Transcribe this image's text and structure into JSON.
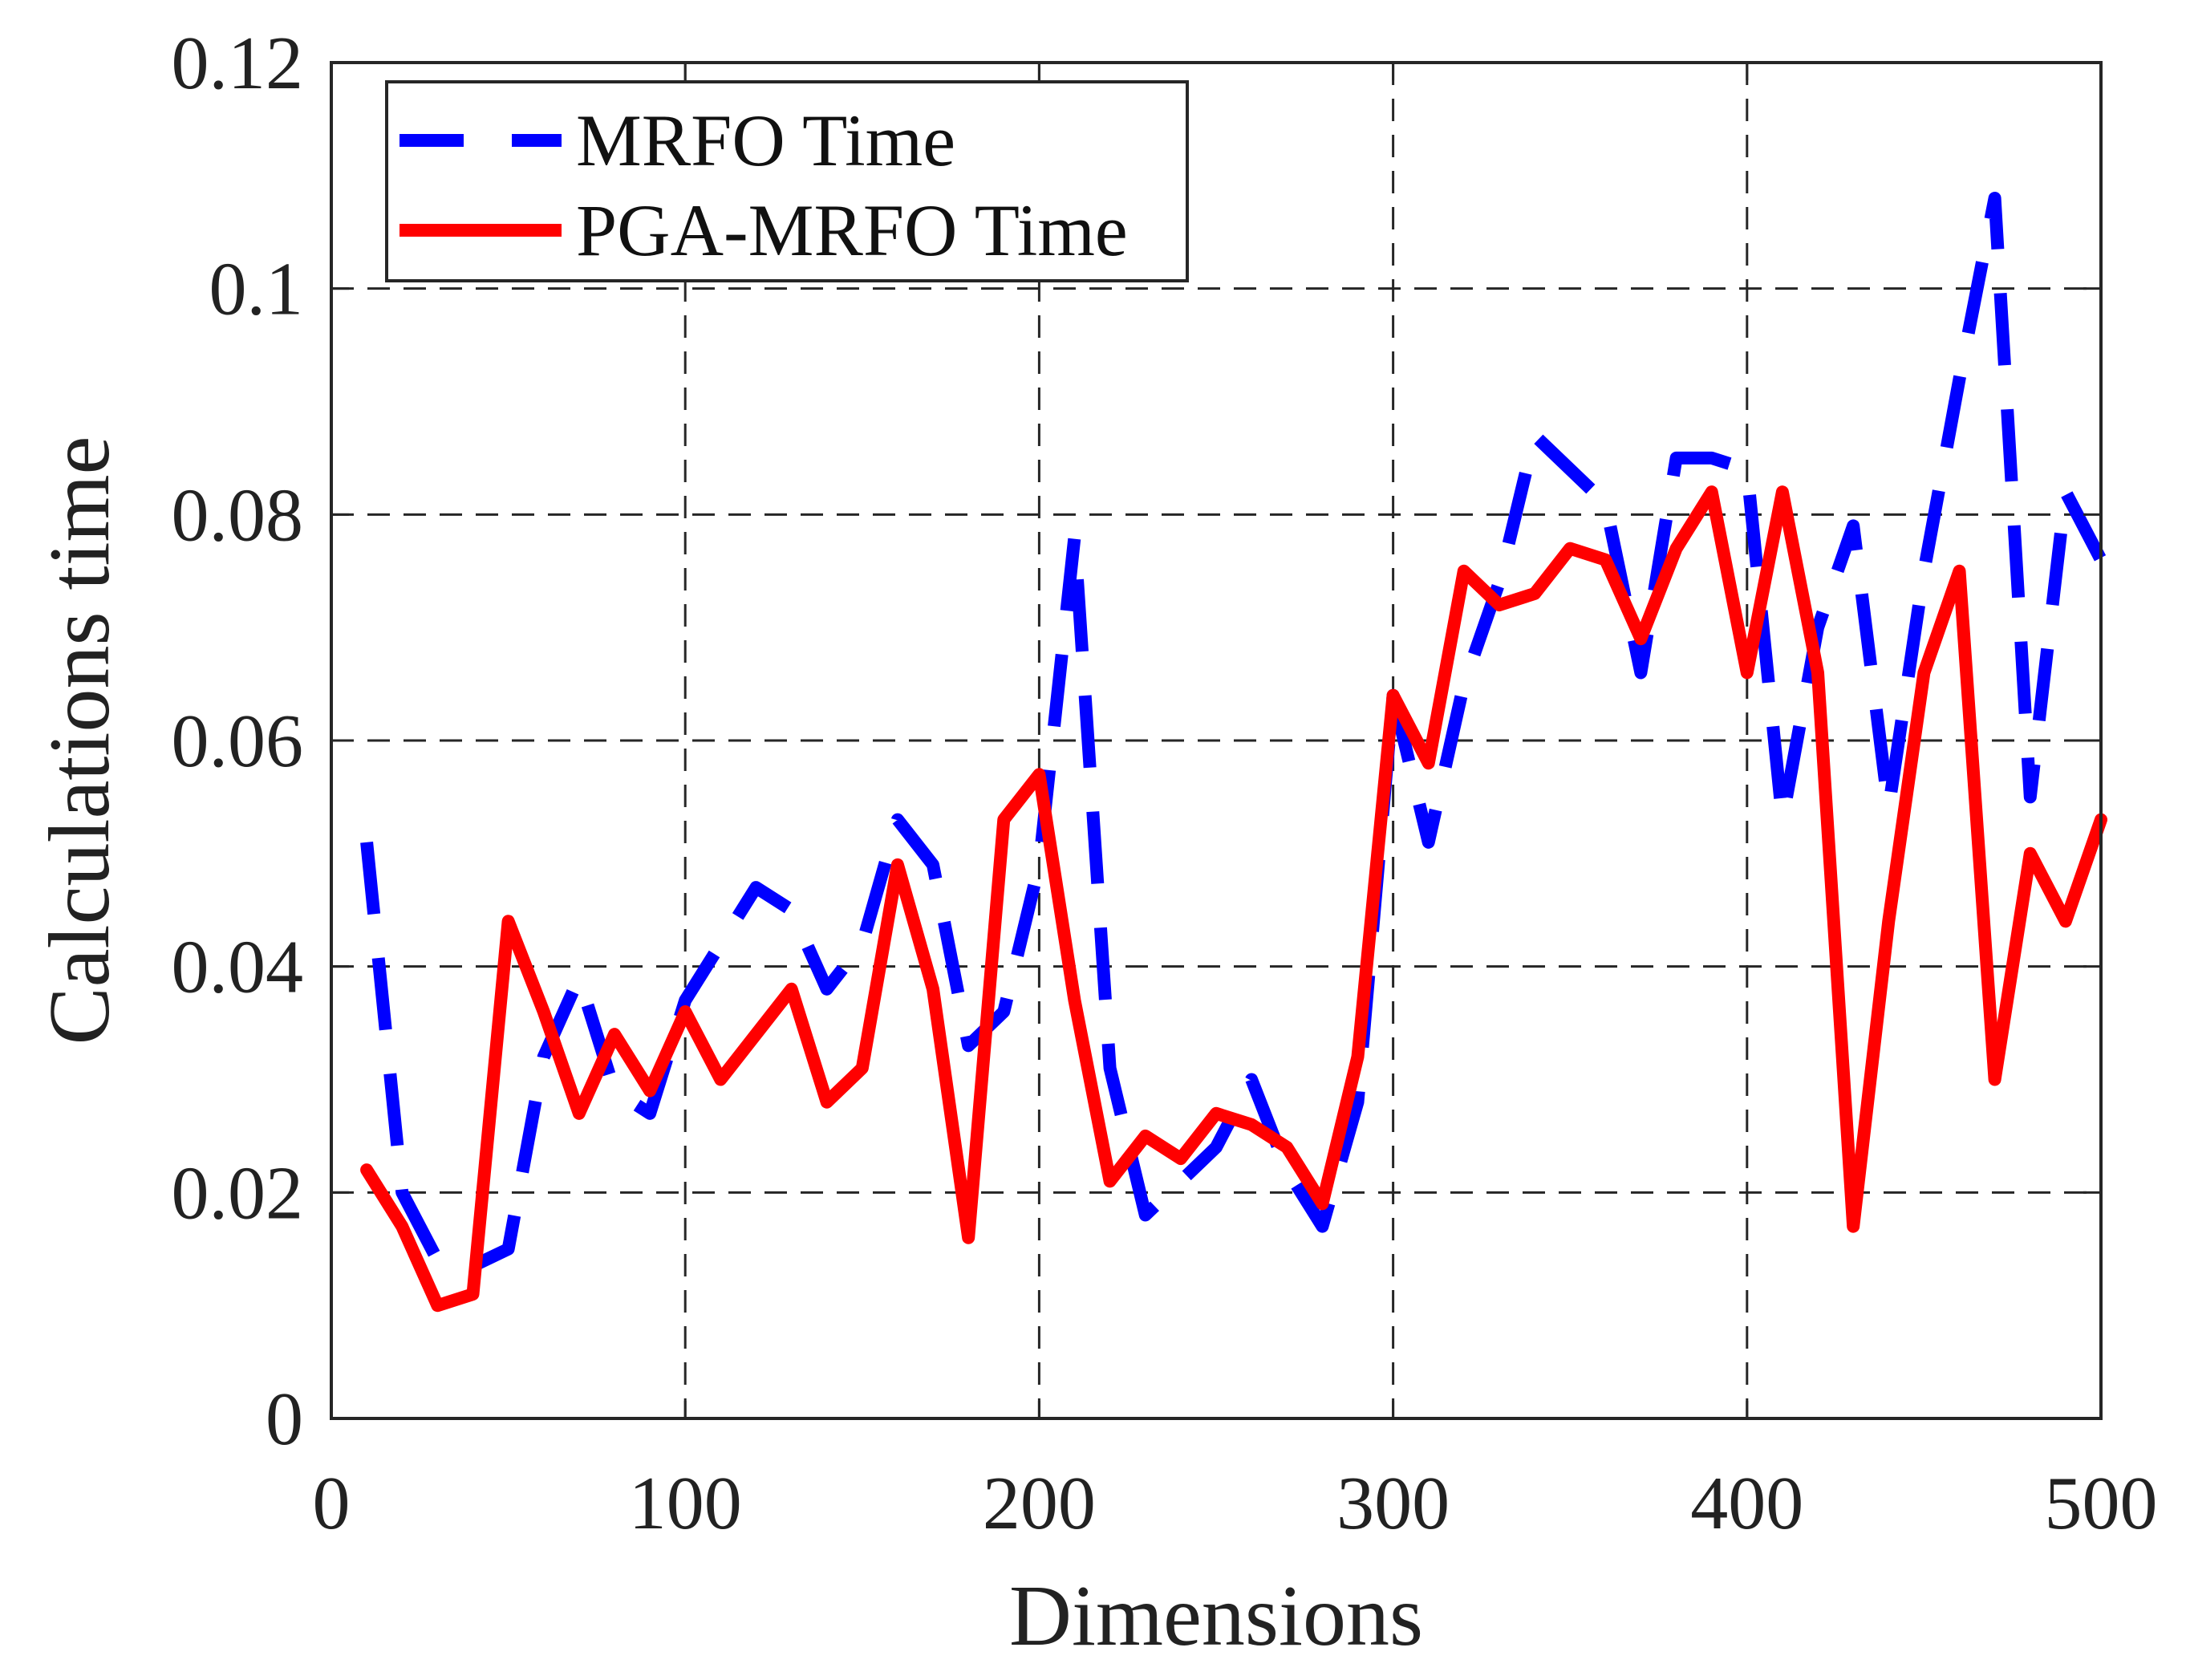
{
  "chart_data": {
    "type": "line",
    "title": "",
    "xlabel": "Dimensions",
    "ylabel": "Calculations time",
    "xlim": [
      0,
      500
    ],
    "ylim": [
      0,
      0.12
    ],
    "grid": true,
    "legend_position": "top-left",
    "x_ticks": [
      0,
      100,
      200,
      300,
      400,
      500
    ],
    "x_tick_labels": [
      "0",
      "100",
      "200",
      "300",
      "400",
      "500"
    ],
    "y_ticks": [
      0,
      0.02,
      0.04,
      0.06,
      0.08,
      0.1,
      0.12
    ],
    "y_tick_labels": [
      "0",
      "0.02",
      "0.04",
      "0.06",
      "0.08",
      "0.1",
      "0.12"
    ],
    "x": [
      10,
      20,
      30,
      40,
      50,
      60,
      70,
      80,
      90,
      100,
      110,
      120,
      130,
      140,
      150,
      160,
      170,
      180,
      190,
      200,
      210,
      220,
      230,
      240,
      250,
      260,
      270,
      280,
      290,
      300,
      310,
      320,
      330,
      340,
      350,
      360,
      370,
      380,
      390,
      400,
      410,
      420,
      430,
      440,
      450,
      460,
      470,
      480,
      490,
      500
    ],
    "series": [
      {
        "name": "MRFO Time",
        "color": "#0000ff",
        "style": "dashed",
        "values": [
          0.051,
          0.02,
          0.014,
          0.0135,
          0.015,
          0.032,
          0.039,
          0.029,
          0.027,
          0.037,
          0.042,
          0.047,
          0.045,
          0.038,
          0.042,
          0.053,
          0.049,
          0.033,
          0.036,
          0.049,
          0.078,
          0.031,
          0.018,
          0.021,
          0.024,
          0.03,
          0.022,
          0.017,
          0.028,
          0.064,
          0.051,
          0.065,
          0.074,
          0.087,
          0.084,
          0.081,
          0.066,
          0.085,
          0.085,
          0.084,
          0.053,
          0.07,
          0.079,
          0.054,
          0.075,
          0.092,
          0.108,
          0.055,
          0.082,
          0.076
        ]
      },
      {
        "name": "PGA-MRFO Time",
        "color": "#ff0000",
        "style": "solid",
        "values": [
          0.022,
          0.017,
          0.01,
          0.011,
          0.044,
          0.036,
          0.027,
          0.034,
          0.029,
          0.036,
          0.03,
          0.034,
          0.038,
          0.028,
          0.031,
          0.049,
          0.038,
          0.016,
          0.053,
          0.057,
          0.037,
          0.021,
          0.025,
          0.023,
          0.027,
          0.026,
          0.024,
          0.019,
          0.032,
          0.064,
          0.058,
          0.075,
          0.072,
          0.073,
          0.077,
          0.076,
          0.069,
          0.077,
          0.082,
          0.066,
          0.082,
          0.066,
          0.017,
          0.044,
          0.066,
          0.075,
          0.03,
          0.05,
          0.044,
          0.053
        ]
      }
    ]
  }
}
